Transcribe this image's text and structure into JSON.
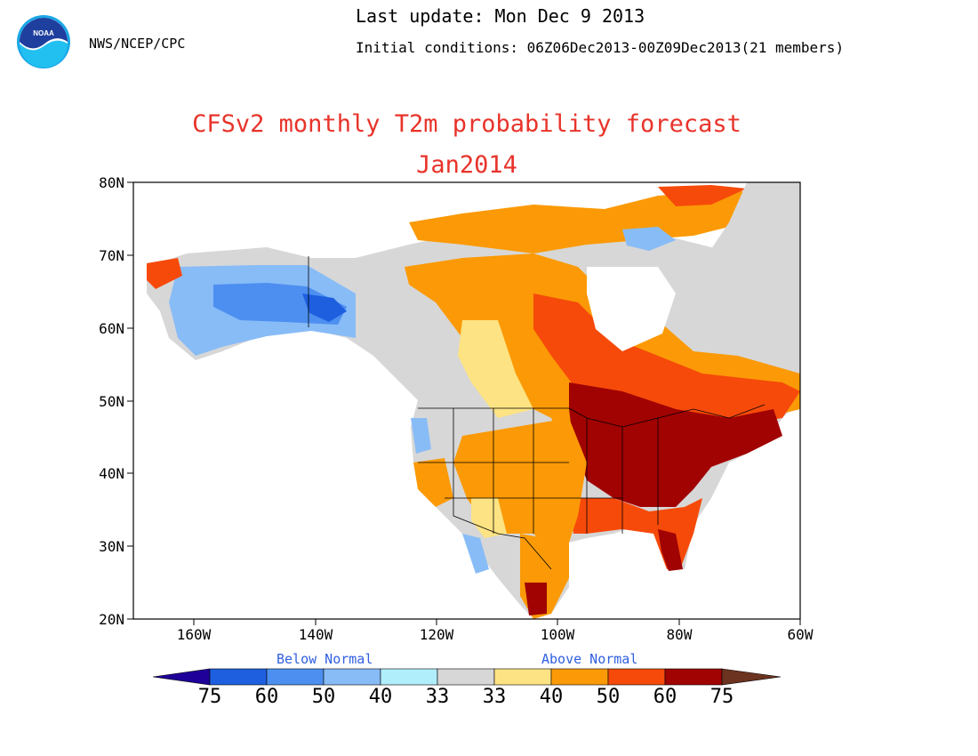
{
  "header": {
    "agency": "NWS/NCEP/CPC",
    "last_update": "Last update: Mon Dec 9 2013",
    "initial_conditions": "Initial conditions: 06Z06Dec2013-00Z09Dec2013(21 members)",
    "logo_icon": "noaa-logo-icon",
    "logo_text": "NOAA"
  },
  "title": "CFSv2 monthly T2m probability forecast",
  "subtitle": "Jan2014",
  "map": {
    "lat_labels": [
      "80N",
      "70N",
      "60N",
      "50N",
      "40N",
      "30N",
      "20N"
    ],
    "lon_labels": [
      "160W",
      "140W",
      "120W",
      "100W",
      "80W",
      "60W"
    ],
    "extent": {
      "lon": [
        -170,
        -60
      ],
      "lat": [
        20,
        80
      ]
    },
    "regions": [
      {
        "name": "Alaska",
        "category": "Below Normal 40-50"
      },
      {
        "name": "Western Canada",
        "category": "Above Normal 40-50"
      },
      {
        "name": "Eastern US / Great Lakes",
        "category": "Above Normal 60-75"
      },
      {
        "name": "Southeast US",
        "category": "Above Normal 50-60"
      },
      {
        "name": "Western US",
        "category": "Normal 33"
      }
    ]
  },
  "legend": {
    "below_label": "Below Normal",
    "above_label": "Above Normal",
    "values": [
      "75",
      "60",
      "50",
      "40",
      "33",
      "33",
      "40",
      "50",
      "60",
      "75"
    ],
    "colors": [
      "#1f0099",
      "#1e5fe0",
      "#4d8ff0",
      "#88bcf7",
      "#b0eefc",
      "#d7d7d7",
      "#fde383",
      "#fb9a06",
      "#f64a0a",
      "#a10202",
      "#6b3320"
    ]
  }
}
